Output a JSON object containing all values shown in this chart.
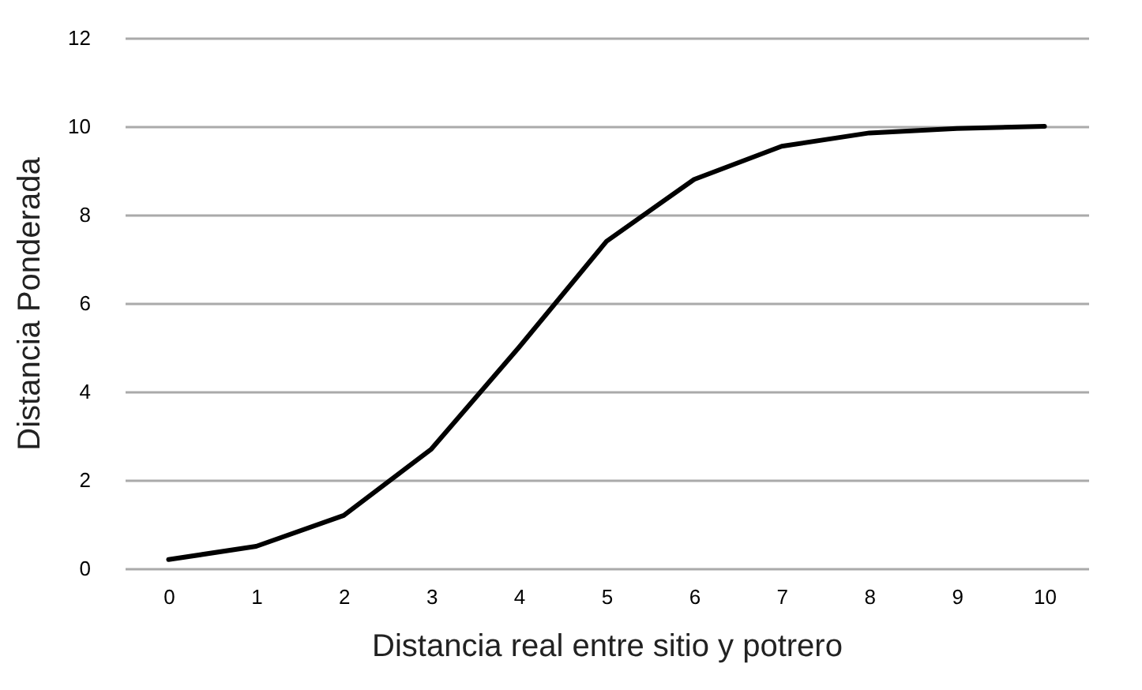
{
  "chart_data": {
    "type": "line",
    "xlabel": "Distancia real entre sitio y potrero",
    "ylabel": "Distancia Ponderada",
    "categories": [
      "0",
      "1",
      "2",
      "3",
      "4",
      "5",
      "6",
      "7",
      "8",
      "9",
      "10"
    ],
    "series": [
      {
        "color": "#000000",
        "values": [
          0.2,
          0.5,
          1.2,
          2.7,
          5.0,
          7.4,
          8.8,
          9.55,
          9.85,
          9.95,
          10.0
        ]
      }
    ],
    "ylim": [
      0,
      12
    ],
    "yticks": [
      0,
      2,
      4,
      6,
      8,
      10,
      12
    ],
    "grid": "y",
    "legend": false,
    "marker": "none",
    "line_style": "solid"
  }
}
